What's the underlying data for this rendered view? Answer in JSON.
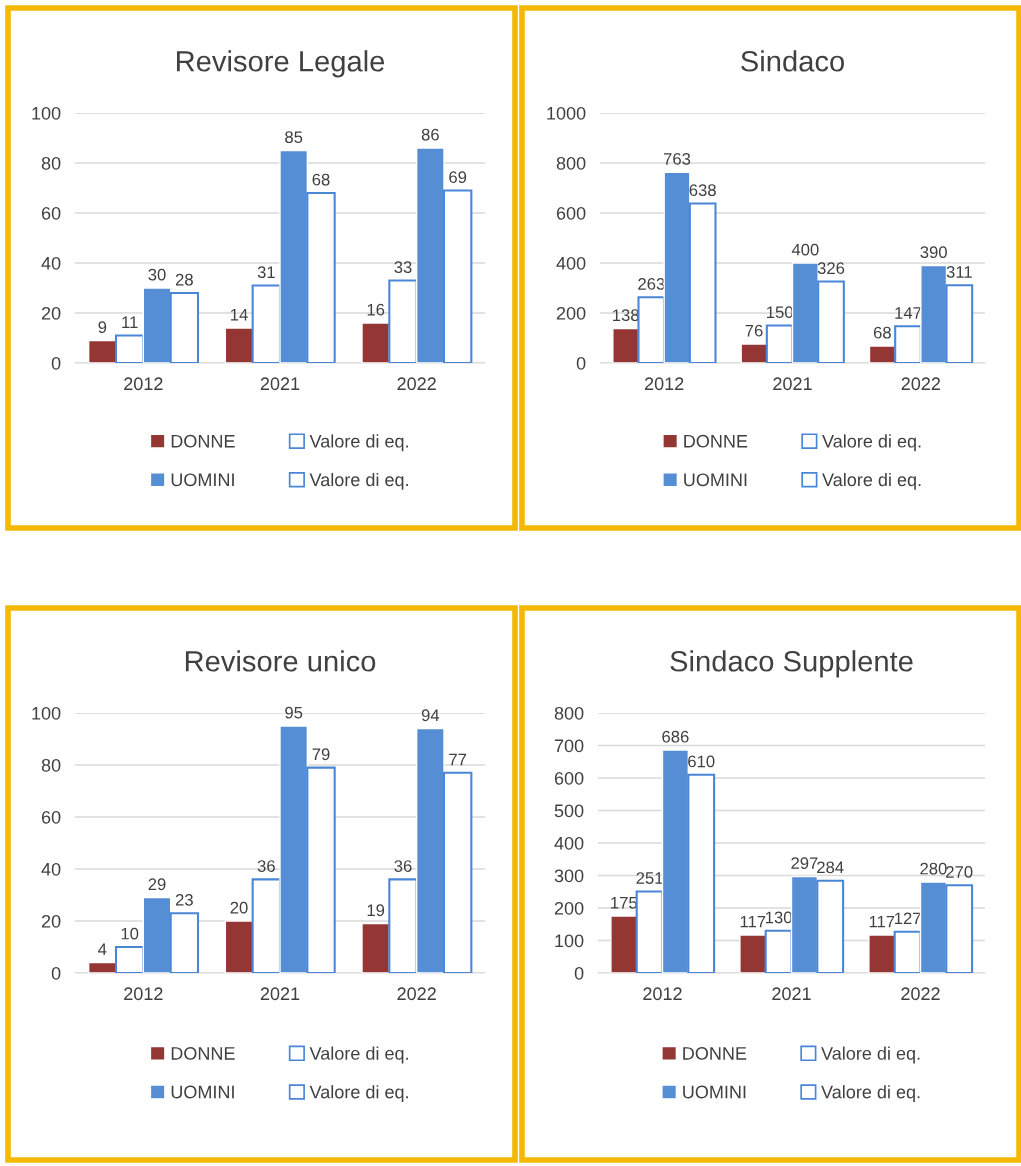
{
  "chart_data": [
    {
      "type": "bar",
      "title": "Revisore Legale",
      "categories": [
        "2012",
        "2021",
        "2022"
      ],
      "ylim": [
        0,
        100
      ],
      "yticks": [
        0,
        20,
        40,
        60,
        80,
        100
      ],
      "grid": "y",
      "legend": "bottom",
      "data_labels": true,
      "series": [
        {
          "name": "DONNE",
          "color": "#943634",
          "values": [
            9,
            14,
            16
          ]
        },
        {
          "name": "Valore di eq.",
          "color": "#ffffff",
          "values": [
            11,
            31,
            33
          ]
        },
        {
          "name": "UOMINI",
          "color": "#558ed5",
          "values": [
            30,
            85,
            86
          ]
        },
        {
          "name": "Valore di eq.",
          "color": "#ffffff",
          "values": [
            28,
            68,
            69
          ]
        }
      ]
    },
    {
      "type": "bar",
      "title": "Sindaco",
      "categories": [
        "2012",
        "2021",
        "2022"
      ],
      "ylim": [
        0,
        1000
      ],
      "yticks": [
        0,
        200,
        400,
        600,
        800,
        1000
      ],
      "grid": "y",
      "legend": "bottom",
      "data_labels": true,
      "series": [
        {
          "name": "DONNE",
          "color": "#943634",
          "values": [
            138,
            76,
            68
          ]
        },
        {
          "name": "Valore di eq.",
          "color": "#ffffff",
          "values": [
            263,
            150,
            147
          ]
        },
        {
          "name": "UOMINI",
          "color": "#558ed5",
          "values": [
            763,
            400,
            390
          ]
        },
        {
          "name": "Valore di eq.",
          "color": "#ffffff",
          "values": [
            638,
            326,
            311
          ]
        }
      ]
    },
    {
      "type": "bar",
      "title": "Revisore unico",
      "categories": [
        "2012",
        "2021",
        "2022"
      ],
      "ylim": [
        0,
        100
      ],
      "yticks": [
        0,
        20,
        40,
        60,
        80,
        100
      ],
      "grid": "y",
      "legend": "bottom",
      "data_labels": true,
      "series": [
        {
          "name": "DONNE",
          "color": "#943634",
          "values": [
            4,
            20,
            19
          ]
        },
        {
          "name": "Valore di eq.",
          "color": "#ffffff",
          "values": [
            10,
            36,
            36
          ]
        },
        {
          "name": "UOMINI",
          "color": "#558ed5",
          "values": [
            29,
            95,
            94
          ]
        },
        {
          "name": "Valore di eq.",
          "color": "#ffffff",
          "values": [
            23,
            79,
            77
          ]
        }
      ]
    },
    {
      "type": "bar",
      "title": "Sindaco Supplente",
      "categories": [
        "2012",
        "2021",
        "2022"
      ],
      "ylim": [
        0,
        800
      ],
      "yticks": [
        0,
        100,
        200,
        300,
        400,
        500,
        600,
        700,
        800
      ],
      "grid": "y",
      "legend": "bottom",
      "data_labels": true,
      "series": [
        {
          "name": "DONNE",
          "color": "#943634",
          "values": [
            175,
            117,
            117
          ]
        },
        {
          "name": "Valore di eq.",
          "color": "#ffffff",
          "values": [
            251,
            130,
            127
          ]
        },
        {
          "name": "UOMINI",
          "color": "#558ed5",
          "values": [
            686,
            297,
            280
          ]
        },
        {
          "name": "Valore di eq.",
          "color": "#ffffff",
          "values": [
            610,
            284,
            270
          ]
        }
      ]
    }
  ]
}
